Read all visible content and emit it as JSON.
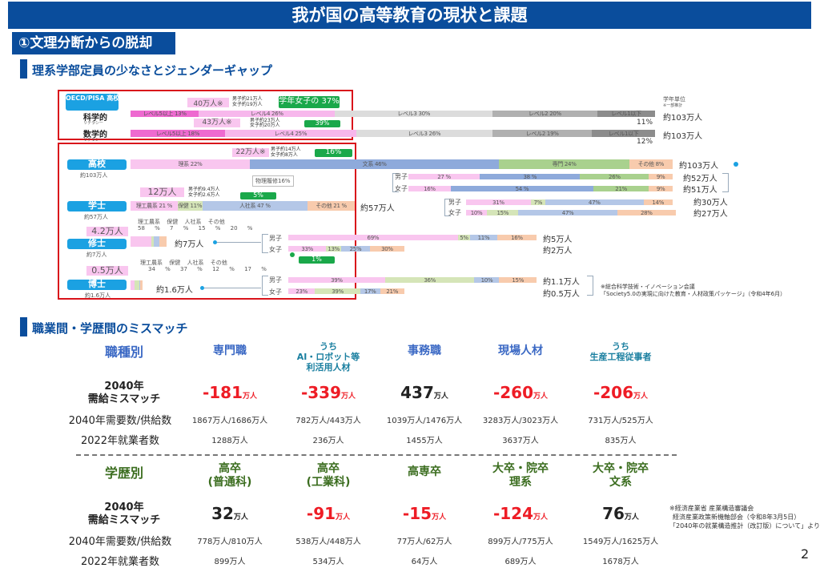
{
  "title": "我が国の高等教育の現状と課題",
  "section": "①文理分断からの脱却",
  "subheading1": "理系学部定員の少なさとジェンダーギャップ",
  "subheading2": "職業間・学歴間のミスマッチ",
  "pisa": {
    "label": "OECD/PISA 高校１年生",
    "science_label": "科学的",
    "science_sub": "リテラシー",
    "math_label": "数学的",
    "math_sub": "リテラシー",
    "unit_note": "学年単位",
    "unit_note_sub": "※一部推計",
    "science_total": "約103万人",
    "math_total": "約103万人",
    "science_lv1_pct": "11%",
    "math_lv1_pct": "12%",
    "science_callout": "40万人※",
    "science_gender": [
      "男子約21万人",
      "女子約19万人"
    ],
    "science_female_share": "学年女子の 37%",
    "math_callout": "43万人※",
    "math_gender": [
      "男子約23万人",
      "女子約20万人"
    ],
    "math_female_share": "39%"
  },
  "bars": {
    "pisa_science": [
      {
        "label": "レベル5以上 13%",
        "value": 13,
        "color": "#ee6ad0"
      },
      {
        "label": "レベル4 26%",
        "value": 26,
        "color": "#f7b7ec"
      },
      {
        "label": "レベル3 30%",
        "value": 30,
        "color": "#dcdcdc"
      },
      {
        "label": "レベル2 20%",
        "value": 20,
        "color": "#b0b0b0"
      },
      {
        "label": "レベル1以下",
        "value": 11,
        "color": "#8c8c8c"
      }
    ],
    "pisa_math": [
      {
        "label": "レベル5以上 18%",
        "value": 18,
        "color": "#ee6ad0"
      },
      {
        "label": "レベル4 25%",
        "value": 25,
        "color": "#f7b7ec"
      },
      {
        "label": "レベル3 26%",
        "value": 26,
        "color": "#dcdcdc"
      },
      {
        "label": "レベル2 19%",
        "value": 19,
        "color": "#b0b0b0"
      },
      {
        "label": "レベル1以下",
        "value": 12,
        "color": "#8c8c8c"
      }
    ],
    "highschool": [
      {
        "label": "理系 22%",
        "value": 22,
        "color": "#f9c6ef"
      },
      {
        "label": "文系 46%",
        "value": 46,
        "color": "#8eaadb"
      },
      {
        "label": "専門 24%",
        "value": 24,
        "color": "#a9d18e"
      },
      {
        "label": "その他 8%",
        "value": 8,
        "color": "#f8cbad"
      }
    ],
    "highschool_male": [
      {
        "label": "27 %",
        "value": 27,
        "color": "#f9c6ef"
      },
      {
        "label": "38 %",
        "value": 38,
        "color": "#8eaadb"
      },
      {
        "label": "26%",
        "value": 26,
        "color": "#a9d18e"
      },
      {
        "label": "9%",
        "value": 9,
        "color": "#f8cbad"
      }
    ],
    "highschool_female": [
      {
        "label": "16%",
        "value": 16,
        "color": "#f9c6ef"
      },
      {
        "label": "54 %",
        "value": 54,
        "color": "#8eaadb"
      },
      {
        "label": "21%",
        "value": 21,
        "color": "#a9d18e"
      },
      {
        "label": "9%",
        "value": 9,
        "color": "#f8cbad"
      }
    ],
    "bachelor": [
      {
        "label": "理工農系 21 %",
        "value": 21,
        "color": "#f9c6ef"
      },
      {
        "label": "保健 11%",
        "value": 11,
        "color": "#d5e5b8"
      },
      {
        "label": "人社系 47 %",
        "value": 47,
        "color": "#b4c7e7"
      },
      {
        "label": "その他 21 %",
        "value": 21,
        "color": "#f8cbad"
      }
    ],
    "bachelor_male": [
      {
        "label": "31%",
        "value": 31,
        "color": "#f9c6ef"
      },
      {
        "label": "7%",
        "value": 7,
        "color": "#d5e5b8"
      },
      {
        "label": "47%",
        "value": 47,
        "color": "#b4c7e7"
      },
      {
        "label": "14%",
        "value": 14,
        "color": "#f8cbad"
      }
    ],
    "bachelor_female": [
      {
        "label": "10%",
        "value": 10,
        "color": "#f9c6ef"
      },
      {
        "label": "15%",
        "value": 15,
        "color": "#d5e5b8"
      },
      {
        "label": "47%",
        "value": 47,
        "color": "#b4c7e7"
      },
      {
        "label": "28%",
        "value": 28,
        "color": "#f8cbad"
      }
    ],
    "master": [
      {
        "label": "",
        "value": 58,
        "color": "#f9c6ef"
      },
      {
        "label": "",
        "value": 7,
        "color": "#d5e5b8"
      },
      {
        "label": "",
        "value": 15,
        "color": "#b4c7e7"
      },
      {
        "label": "",
        "value": 20,
        "color": "#f8cbad"
      }
    ],
    "master_male": [
      {
        "label": "69%",
        "value": 69,
        "color": "#f9c6ef"
      },
      {
        "label": "5%",
        "value": 5,
        "color": "#d5e5b8"
      },
      {
        "label": "11%",
        "value": 11,
        "color": "#b4c7e7"
      },
      {
        "label": "16%",
        "value": 16,
        "color": "#f8cbad"
      }
    ],
    "master_female": [
      {
        "label": "33%",
        "value": 33,
        "color": "#f9c6ef"
      },
      {
        "label": "13%",
        "value": 13,
        "color": "#d5e5b8"
      },
      {
        "label": "25%",
        "value": 25,
        "color": "#b4c7e7"
      },
      {
        "label": "30%",
        "value": 30,
        "color": "#f8cbad"
      }
    ],
    "doctor": [
      {
        "label": "",
        "value": 34,
        "color": "#f9c6ef"
      },
      {
        "label": "",
        "value": 37,
        "color": "#d5e5b8"
      },
      {
        "label": "",
        "value": 12,
        "color": "#b4c7e7"
      },
      {
        "label": "",
        "value": 17,
        "color": "#f8cbad"
      }
    ],
    "doctor_male": [
      {
        "label": "39%",
        "value": 39,
        "color": "#f9c6ef"
      },
      {
        "label": "36%",
        "value": 36,
        "color": "#d5e5b8"
      },
      {
        "label": "10%",
        "value": 10,
        "color": "#b4c7e7"
      },
      {
        "label": "15%",
        "value": 15,
        "color": "#f8cbad"
      }
    ],
    "doctor_female": [
      {
        "label": "23%",
        "value": 23,
        "color": "#f9c6ef"
      },
      {
        "label": "39%",
        "value": 39,
        "color": "#d5e5b8"
      },
      {
        "label": "17%",
        "value": 17,
        "color": "#b4c7e7"
      },
      {
        "label": "21%",
        "value": 21,
        "color": "#f8cbad"
      }
    ]
  },
  "highschool": {
    "label": "高校",
    "sub": "約103万人",
    "total": "約103万人",
    "callout": "22万人※",
    "gender": [
      "男子約14万人",
      "女子約8万人"
    ],
    "female_share": "16%",
    "physics": "物理履修16%",
    "male": "男子",
    "female": "女子",
    "male_total": "約52万人",
    "female_total": "約51万人"
  },
  "bachelor": {
    "label": "学士",
    "sub": "約57万人",
    "total": "約57万人",
    "callout": "12万人",
    "gender": [
      "男子約9.4万人",
      "女子約2.6万人"
    ],
    "female_share": "5%",
    "male": "男子",
    "female": "女子",
    "male_total": "約30万人",
    "female_total": "約27万人"
  },
  "master": {
    "label": "修士",
    "sub": "約7万人",
    "total": "約7万人",
    "callout": "4.2万人",
    "fields": [
      "理工農系",
      "保健",
      "人社系",
      "その他"
    ],
    "field_pcts": [
      "58 %",
      "7 %",
      "15 %",
      "20 %"
    ],
    "male": "男子",
    "female": "女子",
    "male_total": "約5万人",
    "female_total": "約2万人",
    "female_share": "1%"
  },
  "doctor": {
    "label": "博士",
    "sub": "約1.6万人",
    "total": "約1.6万人",
    "callout": "0.5万人",
    "fields": [
      "理工農系",
      "保健",
      "人社系",
      "その他"
    ],
    "field_pcts": [
      "34 %",
      "37 %",
      "12 %",
      "17 %"
    ],
    "male": "男子",
    "female": "女子",
    "male_total": "約1.1万人",
    "female_total": "約0.5万人"
  },
  "source1": [
    "※総合科学技術・イノベーション会議",
    "「Society5.0の実現に向けた教育・人材政策パッケージ」（令和4年6月）"
  ],
  "occupation": {
    "header": "職種別",
    "row_mismatch": [
      "2040年",
      "需給ミスマッチ"
    ],
    "row_demand": "2040年需要数/供給数",
    "row_employed": "2022年就業者数",
    "unit": "万人",
    "columns": [
      {
        "name": [
          "専門職"
        ],
        "mismatch": "-181",
        "demand": "1867万人/1686万人",
        "employed": "1288万人",
        "negative": true,
        "style": "blue"
      },
      {
        "name": [
          "うち",
          "AI・ロボット等",
          "利活用人材"
        ],
        "mismatch": "-339",
        "demand": "782万人/443万人",
        "employed": "236万人",
        "negative": true,
        "style": "teal"
      },
      {
        "name": [
          "事務職"
        ],
        "mismatch": "437",
        "demand": "1039万人/1476万人",
        "employed": "1455万人",
        "negative": false,
        "style": "blue"
      },
      {
        "name": [
          "現場人材"
        ],
        "mismatch": "-260",
        "demand": "3283万人/3023万人",
        "employed": "3637万人",
        "negative": true,
        "style": "blue"
      },
      {
        "name": [
          "うち",
          "生産工程従事者"
        ],
        "mismatch": "-206",
        "demand": "731万人/525万人",
        "employed": "835万人",
        "negative": true,
        "style": "teal"
      }
    ]
  },
  "education": {
    "header": "学歴別",
    "row_mismatch": [
      "2040年",
      "需給ミスマッチ"
    ],
    "row_demand": "2040年需要数/供給数",
    "row_employed": "2022年就業者数",
    "unit": "万人",
    "columns": [
      {
        "name": [
          "高卒",
          "(普通科)"
        ],
        "mismatch": "32",
        "demand": "778万人/810万人",
        "employed": "899万人",
        "negative": false
      },
      {
        "name": [
          "高卒",
          "(工業科)"
        ],
        "mismatch": "-91",
        "demand": "538万人/448万人",
        "employed": "534万人",
        "negative": true
      },
      {
        "name": [
          "高専卒"
        ],
        "mismatch": "-15",
        "demand": "77万人/62万人",
        "employed": "64万人",
        "negative": true
      },
      {
        "name": [
          "大卒・院卒",
          "理系"
        ],
        "mismatch": "-124",
        "demand": "899万人/775万人",
        "employed": "689万人",
        "negative": true
      },
      {
        "name": [
          "大卒・院卒",
          "文系"
        ],
        "mismatch": "76",
        "demand": "1549万人/1625万人",
        "employed": "1678万人",
        "negative": false
      }
    ]
  },
  "source2": [
    "※経済産業省 産業構造審議会",
    "経済産業政策新機軸部会（令和8年3月5日）",
    "「2040年の就業構造推計（改訂版）について」より"
  ],
  "page_number": "2"
}
